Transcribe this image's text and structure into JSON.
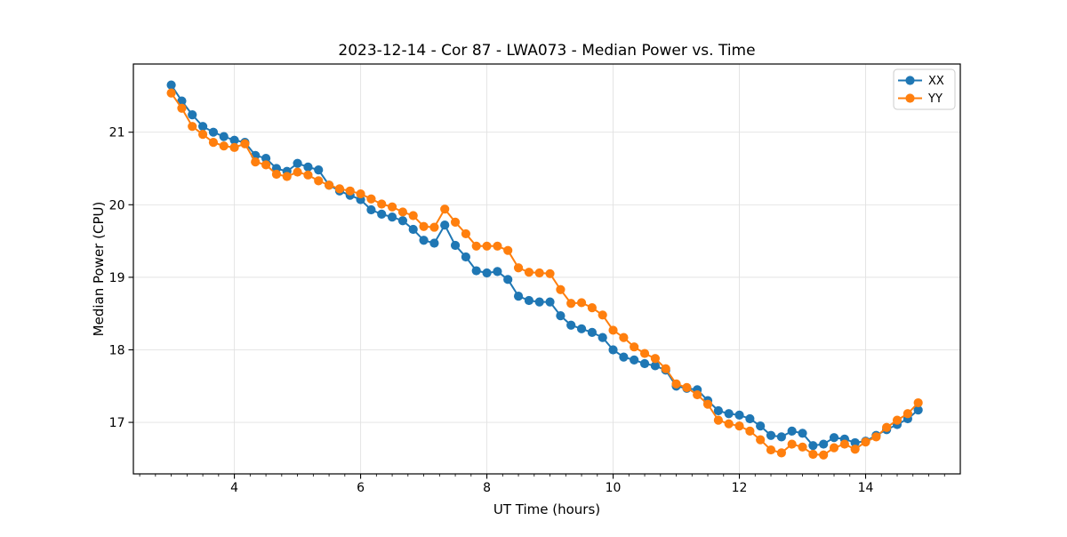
{
  "figure": {
    "title": "2023-12-14 - Cor 87 - LWA073 - Median Power vs. Time"
  },
  "chart_data": {
    "type": "line",
    "title": "2023-12-14 - Cor 87 - LWA073 - Median Power vs. Time",
    "xlabel": "UT Time (hours)",
    "ylabel": "Median Power (CPU)",
    "xlim": [
      2.4,
      15.5
    ],
    "ylim": [
      16.29,
      21.94
    ],
    "x_major_ticks": [
      4,
      6,
      8,
      10,
      12,
      14
    ],
    "x_minor_tick_step": 0.25,
    "y_major_ticks": [
      17,
      18,
      19,
      20,
      21
    ],
    "grid": "major-only",
    "legend_position": "upper-right",
    "marker": "circle",
    "x": [
      3.0,
      3.167,
      3.333,
      3.5,
      3.667,
      3.833,
      4.0,
      4.167,
      4.333,
      4.5,
      4.667,
      4.833,
      5.0,
      5.167,
      5.333,
      5.5,
      5.667,
      5.833,
      6.0,
      6.167,
      6.333,
      6.5,
      6.667,
      6.833,
      7.0,
      7.167,
      7.333,
      7.5,
      7.667,
      7.833,
      8.0,
      8.167,
      8.333,
      8.5,
      8.667,
      8.833,
      9.0,
      9.167,
      9.333,
      9.5,
      9.667,
      9.833,
      10.0,
      10.167,
      10.333,
      10.5,
      10.667,
      10.833,
      11.0,
      11.167,
      11.333,
      11.5,
      11.667,
      11.833,
      12.0,
      12.167,
      12.333,
      12.5,
      12.667,
      12.833,
      13.0,
      13.167,
      13.333,
      13.5,
      13.667,
      13.833,
      14.0,
      14.167,
      14.333,
      14.5,
      14.667,
      14.833
    ],
    "series": [
      {
        "name": "XX",
        "color": "#1f77b4",
        "values": [
          21.65,
          21.43,
          21.24,
          21.08,
          21.0,
          20.94,
          20.89,
          20.86,
          20.68,
          20.64,
          20.5,
          20.46,
          20.57,
          20.52,
          20.48,
          20.27,
          20.19,
          20.13,
          20.07,
          19.93,
          19.87,
          19.83,
          19.78,
          19.66,
          19.51,
          19.47,
          19.72,
          19.44,
          19.28,
          19.09,
          19.06,
          19.08,
          18.97,
          18.74,
          18.68,
          18.66,
          18.66,
          18.47,
          18.34,
          18.29,
          18.24,
          18.17,
          18.0,
          17.9,
          17.86,
          17.81,
          17.78,
          17.72,
          17.5,
          17.47,
          17.45,
          17.3,
          17.16,
          17.12,
          17.1,
          17.05,
          16.95,
          16.82,
          16.8,
          16.88,
          16.85,
          16.68,
          16.7,
          16.79,
          16.77,
          16.72,
          16.74,
          16.82,
          16.9,
          16.97,
          17.05,
          17.17
        ]
      },
      {
        "name": "YY",
        "color": "#ff7f0e",
        "values": [
          21.54,
          21.33,
          21.08,
          20.97,
          20.86,
          20.81,
          20.79,
          20.84,
          20.59,
          20.55,
          20.42,
          20.39,
          20.45,
          20.41,
          20.33,
          20.27,
          20.22,
          20.19,
          20.15,
          20.08,
          20.01,
          19.97,
          19.9,
          19.85,
          19.7,
          19.69,
          19.94,
          19.76,
          19.6,
          19.43,
          19.43,
          19.43,
          19.37,
          19.13,
          19.07,
          19.06,
          19.05,
          18.83,
          18.64,
          18.65,
          18.58,
          18.48,
          18.27,
          18.17,
          18.04,
          17.95,
          17.88,
          17.74,
          17.53,
          17.48,
          17.38,
          17.25,
          17.03,
          16.98,
          16.95,
          16.88,
          16.76,
          16.62,
          16.58,
          16.7,
          16.66,
          16.56,
          16.55,
          16.65,
          16.7,
          16.63,
          16.73,
          16.8,
          16.93,
          17.03,
          17.12,
          17.27
        ]
      }
    ]
  }
}
